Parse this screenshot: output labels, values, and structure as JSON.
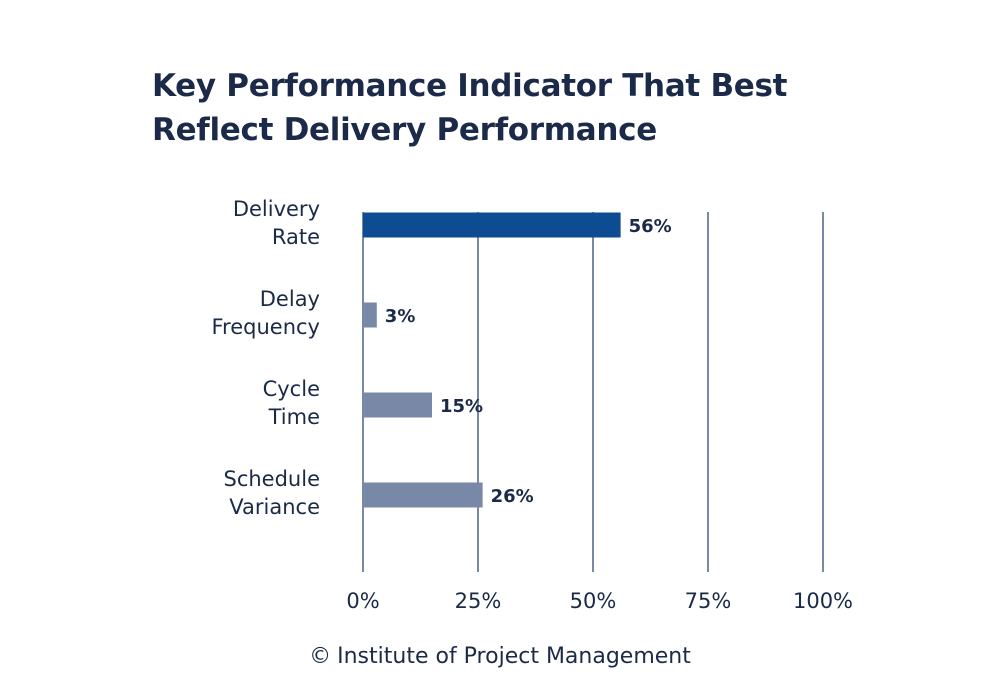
{
  "chart_data": {
    "type": "bar",
    "orientation": "horizontal",
    "title": "Key Performance Indicator That Best Reflect Delivery Performance",
    "title_lines": [
      "Key Performance Indicator That Best",
      "Reflect Delivery Performance"
    ],
    "categories": [
      [
        "Delivery",
        "Rate"
      ],
      [
        "Delay",
        "Frequency"
      ],
      [
        "Cycle",
        "Time"
      ],
      [
        "Schedule",
        "Variance"
      ]
    ],
    "values": [
      56,
      3,
      15,
      26
    ],
    "value_labels": [
      "56%",
      "3%",
      "15%",
      "26%"
    ],
    "xlim": [
      0,
      100
    ],
    "x_ticks": [
      0,
      25,
      50,
      75,
      100
    ],
    "x_tick_labels": [
      "0%",
      "25%",
      "50%",
      "75%",
      "100%"
    ],
    "grid": "vertical",
    "colors": {
      "highlight": "#0d4c92",
      "bar": "#7889a8",
      "grid": "#7889a8",
      "text": "#1b2a48"
    }
  },
  "footer": {
    "copyright_symbol": "©",
    "text": "Institute of Project Management"
  }
}
